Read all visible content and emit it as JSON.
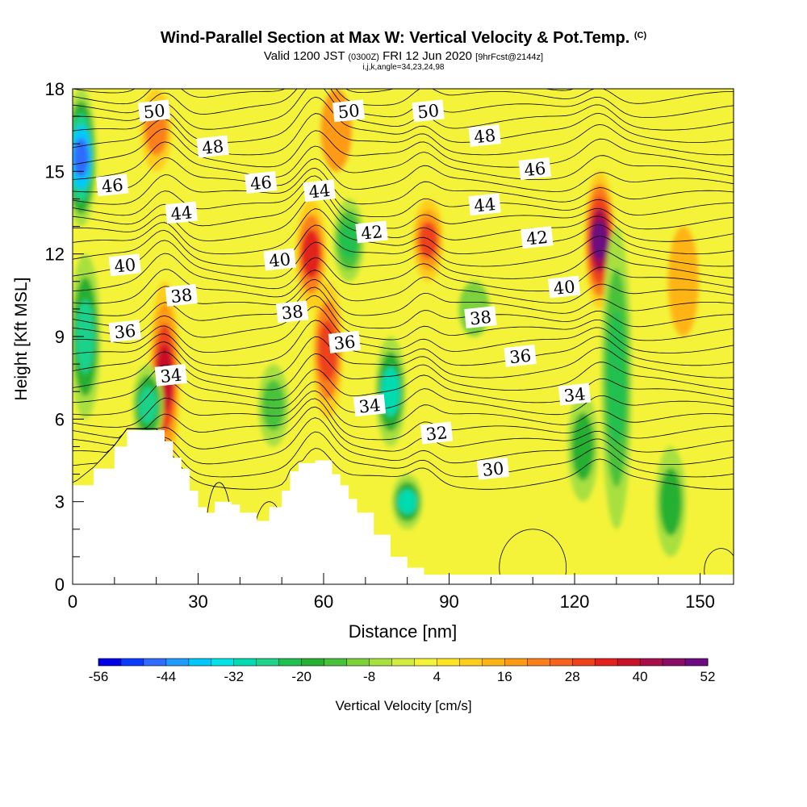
{
  "chart_data": {
    "type": "heatmap",
    "title": "Wind-Parallel Section at Max W: Vertical Velocity & Pot.Temp.",
    "copyright_mark": "(C)",
    "valid_prefix": "Valid 1200 JST",
    "valid_utc": "(0300Z)",
    "valid_date": "FRI 12 Jun 2020",
    "forecast_tag": "[9hrFcst@2144z]",
    "section_info": "i,j,k,angle=34,23,24,98",
    "xlabel": "Distance [nm]",
    "ylabel": "Height [Kft MSL]",
    "xlim": [
      0,
      158
    ],
    "ylim": [
      0,
      18
    ],
    "x_ticks": [
      0,
      30,
      60,
      90,
      120,
      150
    ],
    "y_ticks": [
      0,
      3,
      6,
      9,
      12,
      15,
      18
    ],
    "colorbar": {
      "label": "Vertical Velocity [cm/s]",
      "min": -56,
      "max": 52,
      "step": 4,
      "tick_labels": [
        -56,
        -44,
        -32,
        -20,
        -8,
        4,
        16,
        28,
        40,
        52
      ],
      "colors": [
        "#0000e6",
        "#0b3bff",
        "#2f6cff",
        "#1f9cff",
        "#00c8ff",
        "#00e4e8",
        "#00dbb0",
        "#1ed28a",
        "#20c050",
        "#28b030",
        "#48c23a",
        "#7dd23c",
        "#a8e040",
        "#d4ec40",
        "#f4f33a",
        "#ffe425",
        "#ffcd1c",
        "#ffb414",
        "#ff9a14",
        "#fc7f1a",
        "#f6611e",
        "#ee421e",
        "#e2201e",
        "#c8102a",
        "#a80f4a",
        "#8a0e68",
        "#6c0c80"
      ]
    },
    "topography": [
      [
        0,
        3.6
      ],
      [
        5,
        4.2
      ],
      [
        10,
        5.0
      ],
      [
        13,
        5.6
      ],
      [
        20,
        5.6
      ],
      [
        22,
        5.2
      ],
      [
        24,
        4.6
      ],
      [
        26,
        4.2
      ],
      [
        28,
        3.4
      ],
      [
        30,
        2.8
      ],
      [
        32,
        2.6
      ],
      [
        34,
        3.0
      ],
      [
        38,
        2.9
      ],
      [
        40,
        2.6
      ],
      [
        44,
        2.3
      ],
      [
        47,
        2.8
      ],
      [
        50,
        3.4
      ],
      [
        52,
        4.1
      ],
      [
        54,
        4.4
      ],
      [
        58,
        4.5
      ],
      [
        62,
        4.0
      ],
      [
        64,
        3.6
      ],
      [
        66,
        3.1
      ],
      [
        68,
        2.6
      ],
      [
        72,
        1.8
      ],
      [
        76,
        1.0
      ],
      [
        80,
        0.6
      ],
      [
        84,
        0.35
      ],
      [
        158,
        0.35
      ]
    ],
    "updrafts": [
      {
        "x": 22,
        "z": [
          4,
          11
        ],
        "w": 36
      },
      {
        "x": 57,
        "z": [
          10,
          14
        ],
        "w": 30
      },
      {
        "x": 61,
        "z": [
          6,
          11
        ],
        "w": 28
      },
      {
        "x": 85,
        "z": [
          11,
          14
        ],
        "w": 26
      },
      {
        "x": 126,
        "z": [
          10,
          15
        ],
        "w": 50
      },
      {
        "x": 20,
        "z": [
          15,
          18
        ],
        "w": 20
      },
      {
        "x": 63,
        "z": [
          15,
          18
        ],
        "w": 14
      },
      {
        "x": 146,
        "z": [
          9,
          13
        ],
        "w": 12
      }
    ],
    "downdrafts": [
      {
        "x": 2,
        "z": [
          13,
          18
        ],
        "w": -50
      },
      {
        "x": 3,
        "z": [
          6,
          12
        ],
        "w": -30
      },
      {
        "x": 18,
        "z": [
          5,
          8
        ],
        "w": -30
      },
      {
        "x": 66,
        "z": [
          11,
          14
        ],
        "w": -26
      },
      {
        "x": 76,
        "z": [
          5,
          9
        ],
        "w": -32
      },
      {
        "x": 80,
        "z": [
          2,
          4
        ],
        "w": -34
      },
      {
        "x": 96,
        "z": [
          9,
          11
        ],
        "w": -12
      },
      {
        "x": 130,
        "z": [
          2,
          13
        ],
        "w": -26
      },
      {
        "x": 143,
        "z": [
          1,
          5
        ],
        "w": -22
      },
      {
        "x": 122,
        "z": [
          3,
          7
        ],
        "w": -22
      },
      {
        "x": 48,
        "z": [
          5,
          8
        ],
        "w": -16
      }
    ],
    "isentrope_levels": [
      30,
      32,
      34,
      36,
      38,
      40,
      42,
      44,
      46,
      48,
      50
    ],
    "isentrope_labels": [
      {
        "text": "50",
        "x": 19.5,
        "z": 17.2
      },
      {
        "text": "50",
        "x": 66,
        "z": 17.2
      },
      {
        "text": "50",
        "x": 85,
        "z": 17.2
      },
      {
        "text": "48",
        "x": 33.5,
        "z": 15.9
      },
      {
        "text": "48",
        "x": 98.5,
        "z": 16.3
      },
      {
        "text": "46",
        "x": 9.5,
        "z": 14.5
      },
      {
        "text": "46",
        "x": 45,
        "z": 14.6
      },
      {
        "text": "46",
        "x": 110.5,
        "z": 15.1
      },
      {
        "text": "44",
        "x": 26,
        "z": 13.5
      },
      {
        "text": "44",
        "x": 59,
        "z": 14.3
      },
      {
        "text": "44",
        "x": 98.5,
        "z": 13.8
      },
      {
        "text": "42",
        "x": 71.5,
        "z": 12.8
      },
      {
        "text": "42",
        "x": 111,
        "z": 12.6
      },
      {
        "text": "40",
        "x": 12.5,
        "z": 11.6
      },
      {
        "text": "40",
        "x": 49.5,
        "z": 11.8
      },
      {
        "text": "40",
        "x": 117.5,
        "z": 10.8
      },
      {
        "text": "38",
        "x": 26,
        "z": 10.5
      },
      {
        "text": "38",
        "x": 52.5,
        "z": 9.9
      },
      {
        "text": "38",
        "x": 97.5,
        "z": 9.7
      },
      {
        "text": "36",
        "x": 12.5,
        "z": 9.2
      },
      {
        "text": "36",
        "x": 65,
        "z": 8.8
      },
      {
        "text": "36",
        "x": 107,
        "z": 8.3
      },
      {
        "text": "34",
        "x": 23.5,
        "z": 7.6
      },
      {
        "text": "34",
        "x": 71,
        "z": 6.5
      },
      {
        "text": "34",
        "x": 120,
        "z": 6.9
      },
      {
        "text": "32",
        "x": 87,
        "z": 5.5
      },
      {
        "text": "30",
        "x": 100.5,
        "z": 4.2
      }
    ]
  }
}
